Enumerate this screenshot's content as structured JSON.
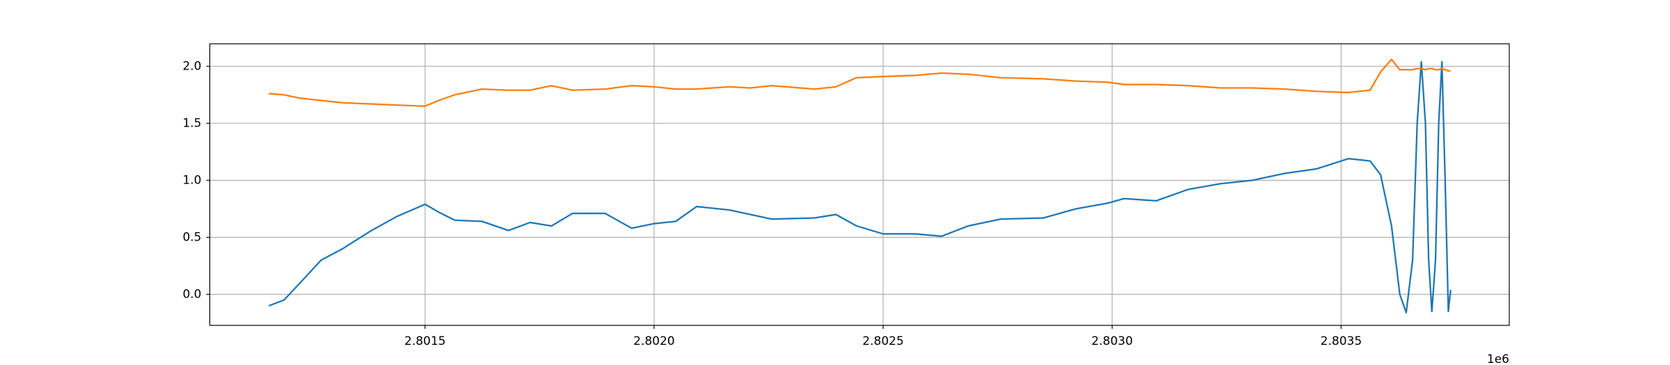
{
  "chart_data": {
    "type": "line",
    "x": [
      2.801159,
      2.801192,
      2.801227,
      2.801273,
      2.80132,
      2.801379,
      2.801437,
      2.8015,
      2.80153,
      2.801565,
      2.801624,
      2.801682,
      2.801729,
      2.801776,
      2.801822,
      2.801893,
      2.801951,
      2.802,
      2.802047,
      2.802093,
      2.802164,
      2.80221,
      2.802257,
      2.80235,
      2.802397,
      2.802442,
      2.8025,
      2.80257,
      2.802628,
      2.802686,
      2.802757,
      2.80285,
      2.802921,
      2.802991,
      2.803026,
      2.803096,
      2.803166,
      2.803236,
      2.803306,
      2.803376,
      2.803446,
      2.803516,
      2.803563,
      2.803586,
      2.80361,
      2.803628,
      2.803642,
      2.803656,
      2.803666,
      2.803675,
      2.803684,
      2.803691,
      2.803698,
      2.803706,
      2.803713,
      2.80372,
      2.803727,
      2.803734,
      2.803739
    ],
    "series": [
      {
        "color": "#1f77b4",
        "values": [
          -0.1,
          -0.05,
          0.1,
          0.3,
          0.4,
          0.55,
          0.68,
          0.79,
          0.72,
          0.65,
          0.64,
          0.56,
          0.63,
          0.6,
          0.71,
          0.71,
          0.58,
          0.62,
          0.64,
          0.77,
          0.74,
          0.7,
          0.66,
          0.67,
          0.7,
          0.6,
          0.53,
          0.53,
          0.51,
          0.6,
          0.66,
          0.67,
          0.75,
          0.8,
          0.84,
          0.82,
          0.92,
          0.97,
          1.0,
          1.06,
          1.1,
          1.19,
          1.17,
          1.05,
          0.6,
          0.0,
          -0.16,
          0.3,
          1.5,
          2.04,
          1.5,
          0.3,
          -0.15,
          0.3,
          1.5,
          2.04,
          1.0,
          -0.15,
          0.04
        ]
      },
      {
        "color": "#ff7f0e",
        "values": [
          1.76,
          1.75,
          1.72,
          1.7,
          1.68,
          1.67,
          1.66,
          1.65,
          1.7,
          1.75,
          1.8,
          1.79,
          1.79,
          1.83,
          1.79,
          1.8,
          1.83,
          1.82,
          1.8,
          1.8,
          1.82,
          1.81,
          1.83,
          1.8,
          1.82,
          1.9,
          1.91,
          1.92,
          1.94,
          1.93,
          1.9,
          1.89,
          1.87,
          1.86,
          1.84,
          1.84,
          1.83,
          1.81,
          1.81,
          1.8,
          1.78,
          1.77,
          1.79,
          1.95,
          2.06,
          1.97,
          1.97,
          1.97,
          1.98,
          1.98,
          1.97,
          1.98,
          1.98,
          1.97,
          1.97,
          1.98,
          1.97,
          1.96,
          1.96
        ]
      }
    ],
    "xlim": [
      2.80103,
      2.803867
    ],
    "ylim": [
      -0.272,
      2.197
    ],
    "xticks": [
      2.8015,
      {
        "value": 2.802,
        "label": "2.8020"
      },
      2.8025,
      {
        "value": 2.803,
        "label": "2.8030"
      },
      2.8035
    ],
    "yticks": [
      {
        "value": 0,
        "label": "0.0"
      },
      0.5,
      {
        "value": 1,
        "label": "1.0"
      },
      1.5,
      {
        "value": 2,
        "label": "2.0"
      }
    ],
    "x_offset_label": "1e6",
    "grid": true
  }
}
